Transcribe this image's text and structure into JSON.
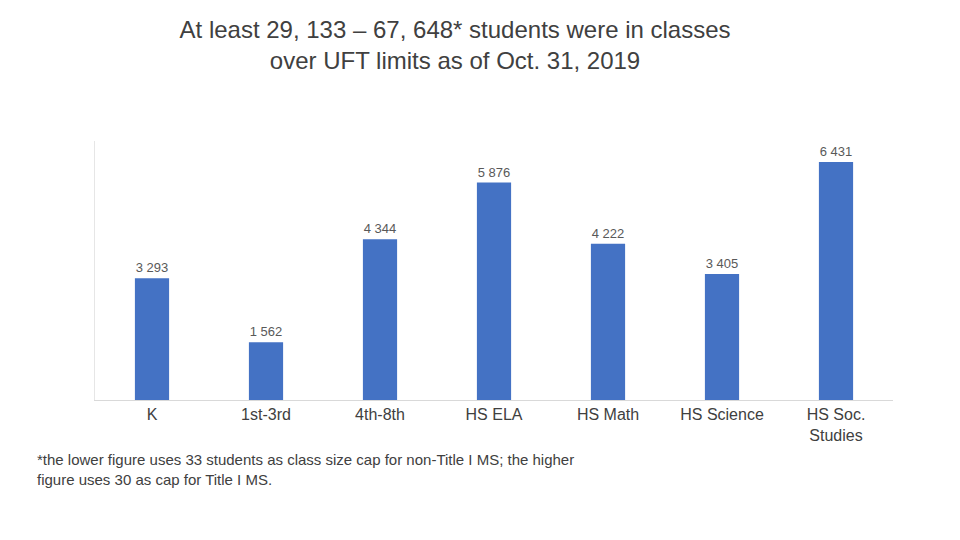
{
  "chart_data": {
    "type": "bar",
    "title": "At least 29, 133 – 67, 648* students were in classes over UFT limits as of Oct. 31, 2019",
    "categories": [
      "K",
      "1st-3rd",
      "4th-8th",
      "HS ELA",
      "HS Math",
      "HS Science",
      "HS Soc. Studies"
    ],
    "values": [
      3293,
      1562,
      4344,
      5876,
      4222,
      3405,
      6431
    ],
    "value_labels": [
      "3 293",
      "1 562",
      "4 344",
      "5 876",
      "4 222",
      "3 405",
      "6 431"
    ],
    "color": "#4472c4",
    "ylim": [
      0,
      7000
    ],
    "grid": false,
    "data_labels": true,
    "tick_labels": "x",
    "annotations": [
      "*the lower figure uses 33 students as class size cap for non-Title I MS; the higher figure uses 30 as cap for Title I MS."
    ]
  }
}
